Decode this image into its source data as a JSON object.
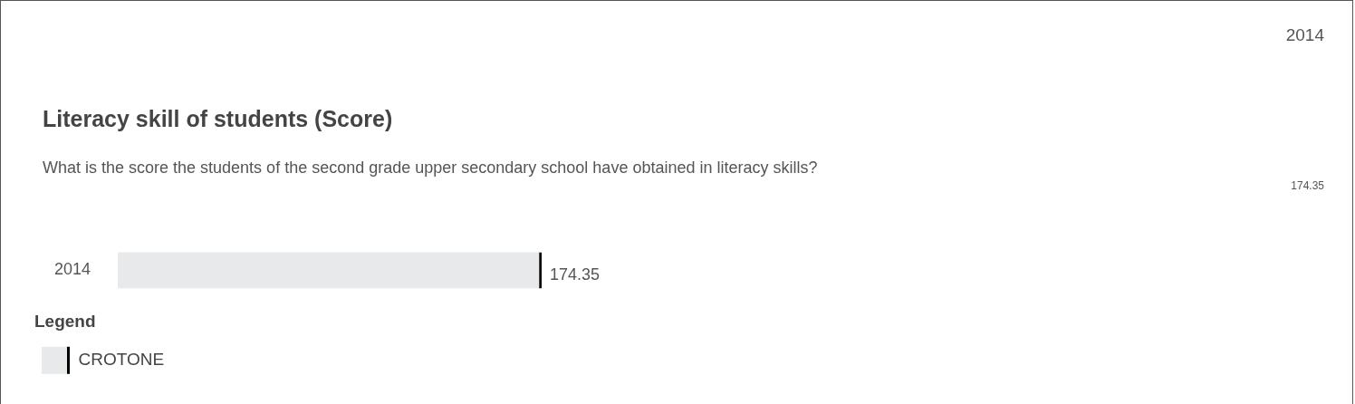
{
  "chart_data": {
    "type": "bar",
    "orientation": "horizontal",
    "title": "Literacy skill of students (Score)",
    "subtitle": "What is the score the students of the second grade upper secondary school have obtained in literacy skills?",
    "categories": [
      "2014"
    ],
    "series": [
      {
        "name": "CROTONE",
        "color": "#e8e9eb",
        "values": [
          174.35
        ]
      }
    ],
    "data_labels": true,
    "legend": "bottom left",
    "legend_title": "Legend",
    "annotations": [
      "2014",
      "174.35"
    ]
  }
}
